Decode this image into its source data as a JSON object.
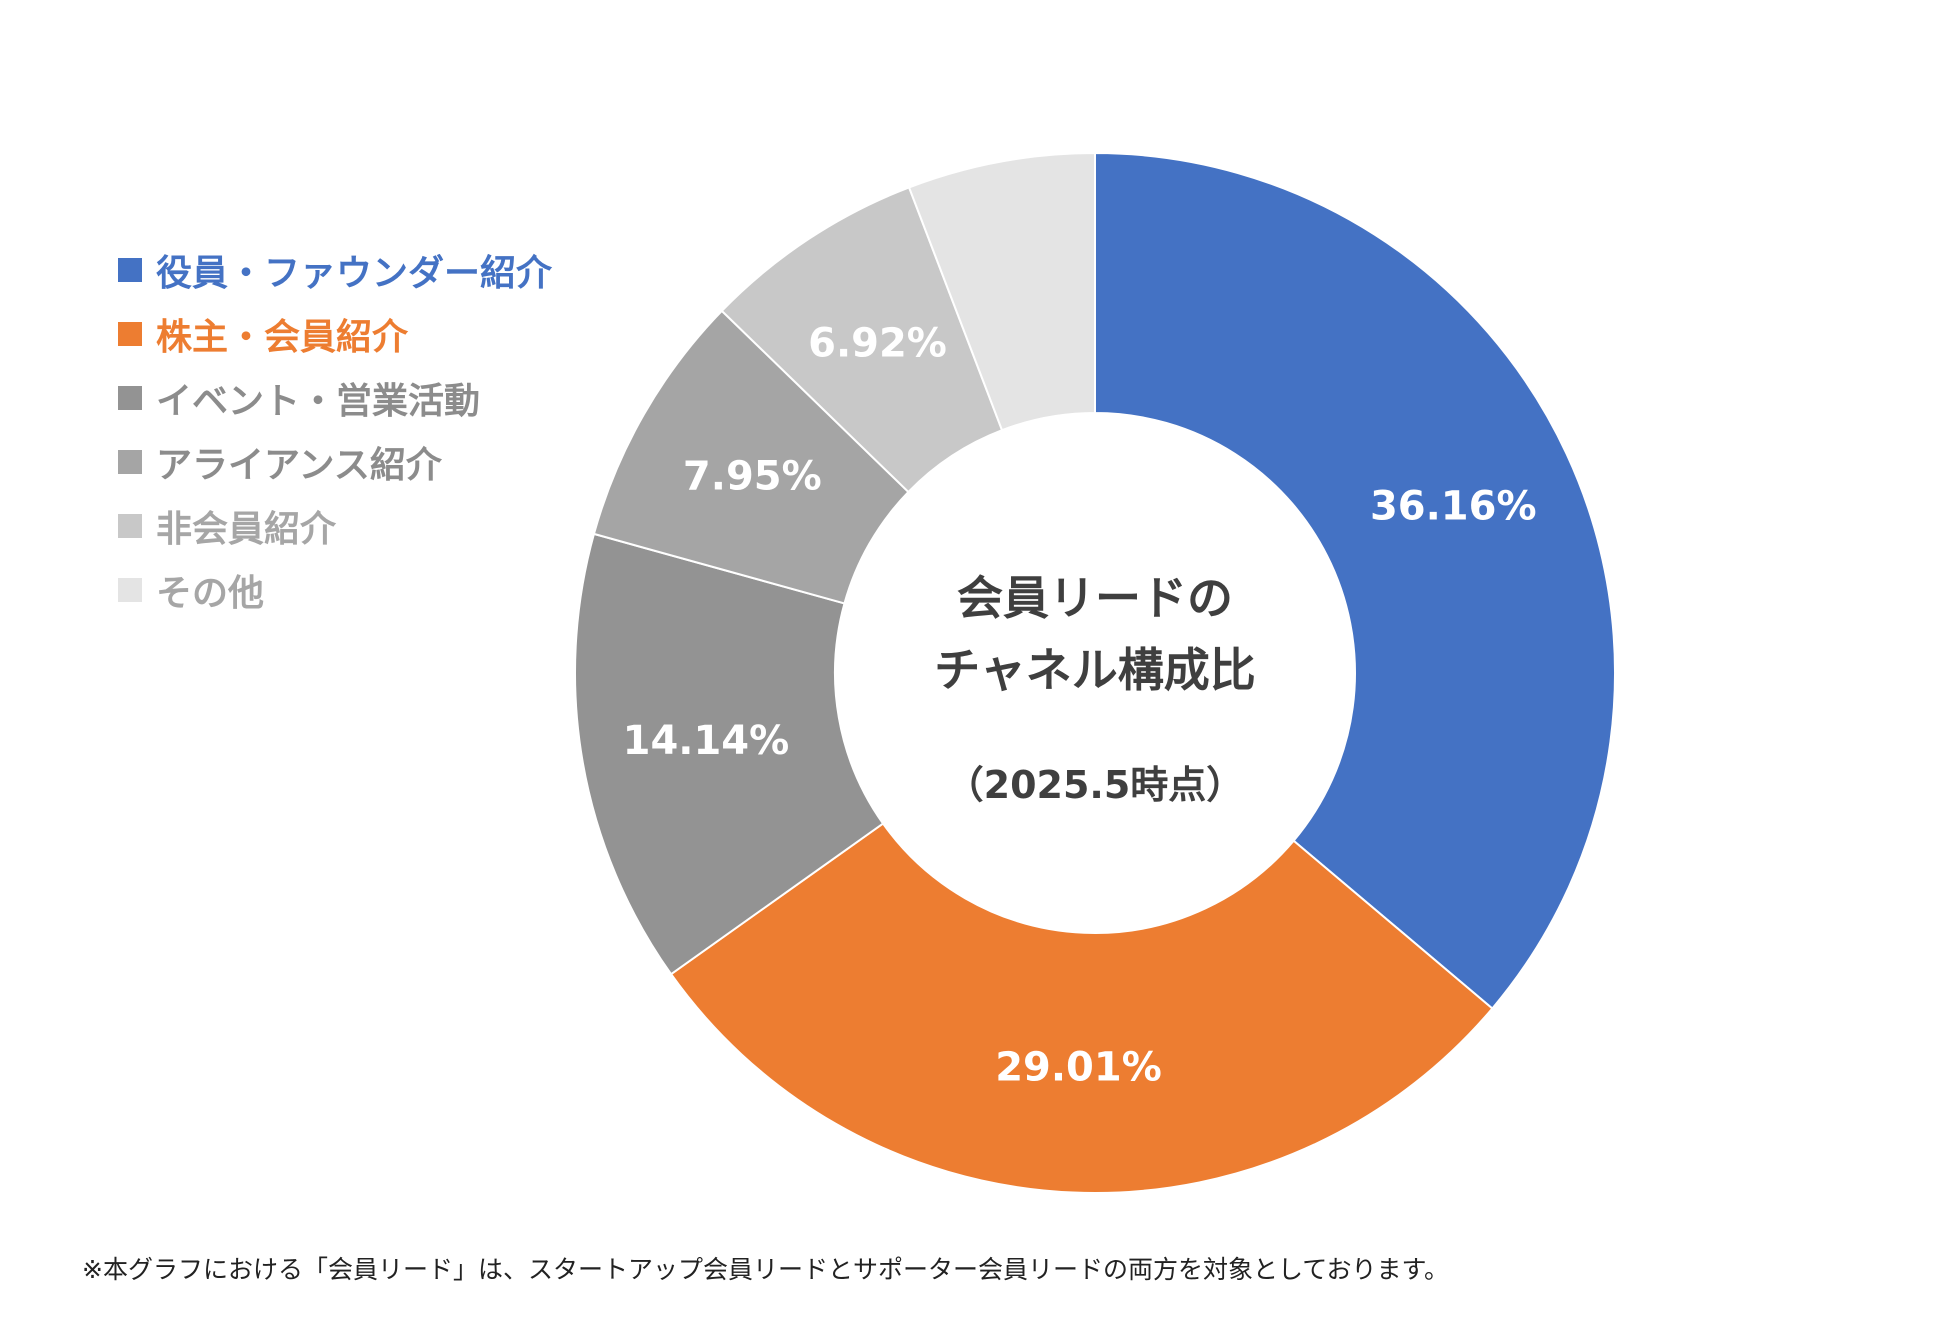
{
  "chart_data": {
    "type": "pie",
    "variant": "donut",
    "title_lines": [
      "会員リードの",
      "チャネル構成比"
    ],
    "subtitle": "（2025.5時点）",
    "categories": [
      "役員・ファウンダー紹介",
      "株主・会員紹介",
      "イベント・営業活動",
      "アライアンス紹介",
      "非会員紹介",
      "その他"
    ],
    "values": [
      36.16,
      29.01,
      14.14,
      7.95,
      6.92,
      5.82
    ],
    "data_labels": [
      "36.16%",
      "29.01%",
      "14.14%",
      "7.95%",
      "6.92%",
      ""
    ],
    "colors": [
      "#4472c4",
      "#ed7d31",
      "#939393",
      "#a5a5a5",
      "#c8c8c8",
      "#e4e4e4"
    ],
    "legend_text_colors": [
      "#4472c4",
      "#ed7d31",
      "#8c8c8c",
      "#8c8c8c",
      "#a6a6a6",
      "#a6a6a6"
    ],
    "legend_placement": "left",
    "start_angle_deg": 0,
    "direction": "clockwise"
  },
  "legend": {
    "swatch_glyph": "■"
  },
  "footnote": "※本グラフにおける「会員リード」は、スタートアップ会員リードとサポーター会員リードの両方を対象としております。"
}
